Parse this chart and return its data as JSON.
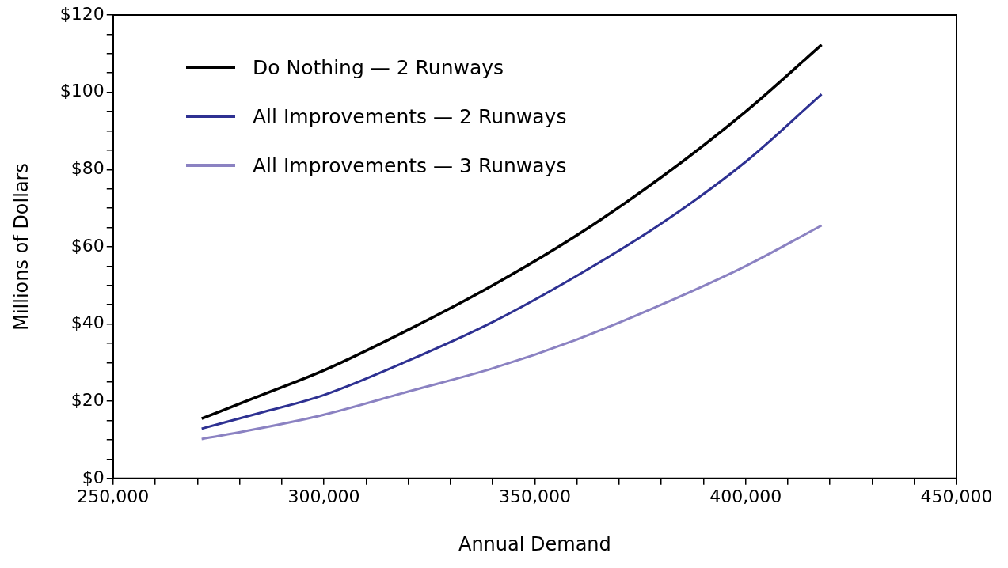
{
  "chart_data": {
    "type": "line",
    "xlabel": "Annual Demand",
    "ylabel": "Millions of Dollars",
    "legend": "top left",
    "marker": "none",
    "line_style": "solid",
    "xlim": [
      250000,
      450000
    ],
    "xticks": [
      {
        "value": 250000,
        "label": "250,000"
      },
      {
        "value": 260000,
        "label": null
      },
      {
        "value": 270000,
        "label": null
      },
      {
        "value": 280000,
        "label": null
      },
      {
        "value": 290000,
        "label": null
      },
      {
        "value": 300000,
        "label": "300,000"
      },
      {
        "value": 310000,
        "label": null
      },
      {
        "value": 320000,
        "label": null
      },
      {
        "value": 330000,
        "label": null
      },
      {
        "value": 340000,
        "label": null
      },
      {
        "value": 350000,
        "label": "350,000"
      },
      {
        "value": 360000,
        "label": null
      },
      {
        "value": 370000,
        "label": null
      },
      {
        "value": 380000,
        "label": null
      },
      {
        "value": 390000,
        "label": null
      },
      {
        "value": 400000,
        "label": "400,000"
      },
      {
        "value": 410000,
        "label": null
      },
      {
        "value": 420000,
        "label": null
      },
      {
        "value": 430000,
        "label": null
      },
      {
        "value": 440000,
        "label": null
      },
      {
        "value": 450000,
        "label": "450,000"
      }
    ],
    "ylim": [
      0,
      120
    ],
    "yticks": [
      {
        "value": 0,
        "label": "$0"
      },
      {
        "value": 5,
        "label": null
      },
      {
        "value": 10,
        "label": null
      },
      {
        "value": 15,
        "label": null
      },
      {
        "value": 20,
        "label": "$20"
      },
      {
        "value": 25,
        "label": null
      },
      {
        "value": 30,
        "label": null
      },
      {
        "value": 35,
        "label": null
      },
      {
        "value": 40,
        "label": "$40"
      },
      {
        "value": 45,
        "label": null
      },
      {
        "value": 50,
        "label": null
      },
      {
        "value": 55,
        "label": null
      },
      {
        "value": 60,
        "label": "$60"
      },
      {
        "value": 65,
        "label": null
      },
      {
        "value": 70,
        "label": null
      },
      {
        "value": 75,
        "label": null
      },
      {
        "value": 80,
        "label": "$80"
      },
      {
        "value": 85,
        "label": null
      },
      {
        "value": 90,
        "label": null
      },
      {
        "value": 95,
        "label": null
      },
      {
        "value": 100,
        "label": "$100"
      },
      {
        "value": 105,
        "label": null
      },
      {
        "value": 110,
        "label": null
      },
      {
        "value": 115,
        "label": null
      },
      {
        "value": 120,
        "label": "$120"
      }
    ],
    "x": [
      271000,
      285000,
      300000,
      320000,
      340000,
      360000,
      380000,
      400000,
      418000
    ],
    "series": [
      {
        "name": "Do Nothing — 2 Runways",
        "color": "#000000",
        "values": [
          15.5,
          21.5,
          28,
          38.5,
          50,
          63,
          78,
          95,
          112.3
        ]
      },
      {
        "name": "All Improvements — 2 Runways",
        "color": "#2e3192",
        "values": [
          12.9,
          17,
          21.6,
          30.5,
          40.5,
          52.5,
          66,
          82,
          99.5
        ]
      },
      {
        "name": "All Improvements — 3 Runways",
        "color": "#8b82c2",
        "values": [
          10.2,
          13,
          16.5,
          22.5,
          28.5,
          36,
          45,
          55,
          65.5
        ]
      }
    ]
  }
}
